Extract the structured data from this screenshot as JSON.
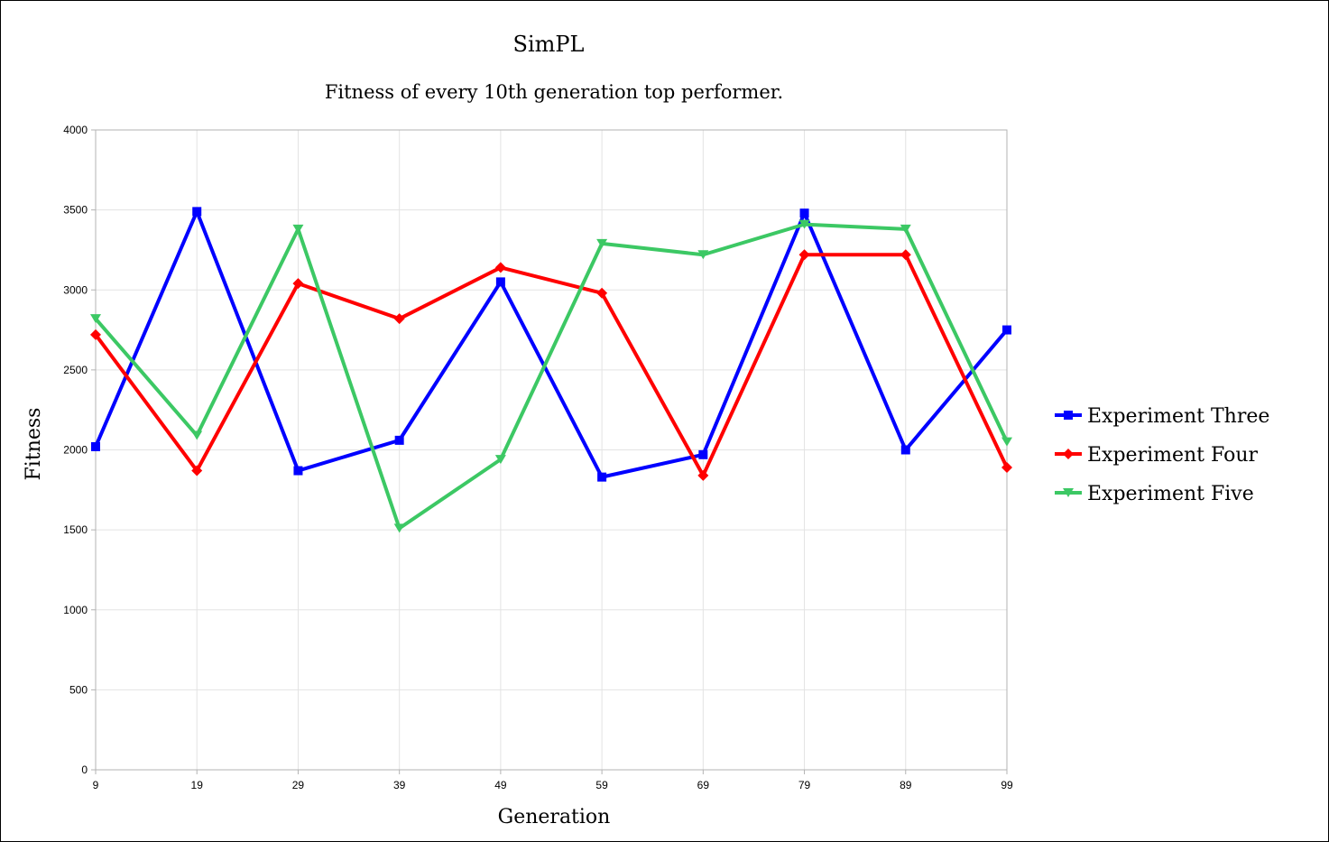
{
  "chart_data": {
    "type": "line",
    "title": "SimPL",
    "subtitle": "Fitness of every 10th generation top performer.",
    "xlabel": "Generation",
    "ylabel": "Fitness",
    "categories": [
      "9",
      "19",
      "29",
      "39",
      "49",
      "59",
      "69",
      "79",
      "89",
      "99"
    ],
    "ylim": [
      0,
      4000
    ],
    "yticks": [
      0,
      500,
      1000,
      1500,
      2000,
      2500,
      3000,
      3500,
      4000
    ],
    "grid": true,
    "legend_position": "right",
    "series": [
      {
        "name": "Experiment Three",
        "color": "#0000ff",
        "marker": "square",
        "values": [
          2020,
          3490,
          1870,
          2060,
          3050,
          1830,
          1970,
          3480,
          2000,
          2750
        ]
      },
      {
        "name": "Experiment Four",
        "color": "#ff0000",
        "marker": "diamond",
        "values": [
          2720,
          1870,
          3040,
          2820,
          3140,
          2980,
          1840,
          3220,
          3220,
          1890
        ]
      },
      {
        "name": "Experiment Five",
        "color": "#3cc864",
        "marker": "triangle-down",
        "values": [
          2820,
          2090,
          3380,
          1510,
          1940,
          3290,
          3220,
          3410,
          3380,
          2050
        ]
      }
    ]
  }
}
